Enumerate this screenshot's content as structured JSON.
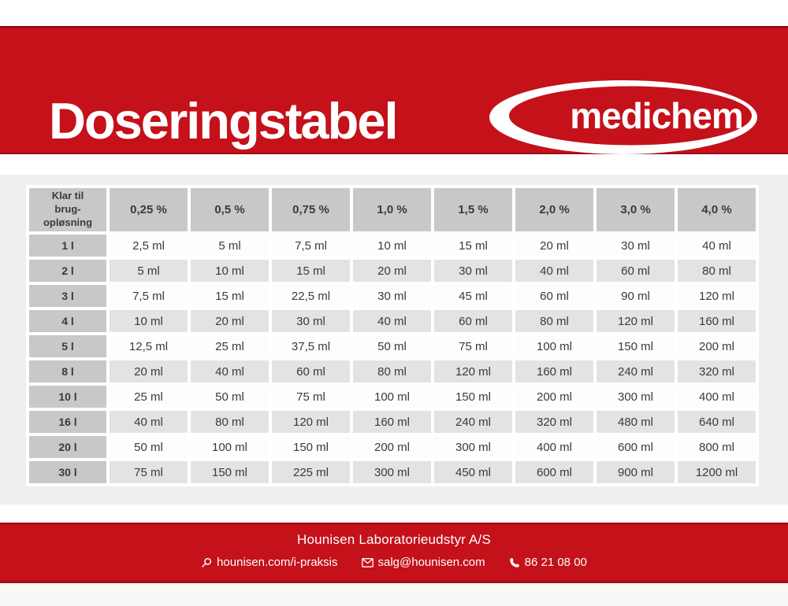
{
  "header": {
    "title": "Doseringstabel",
    "logo_text": "medichem"
  },
  "table": {
    "corner_label": "Klar til\nbrug-\nopløsning",
    "columns": [
      "0,25 %",
      "0,5 %",
      "0,75 %",
      "1,0 %",
      "1,5 %",
      "2,0 %",
      "3,0 %",
      "4,0 %"
    ],
    "rows": [
      {
        "label": "1 l",
        "values": [
          "2,5 ml",
          "5 ml",
          "7,5 ml",
          "10 ml",
          "15 ml",
          "20 ml",
          "30 ml",
          "40 ml"
        ]
      },
      {
        "label": "2 l",
        "values": [
          "5 ml",
          "10 ml",
          "15 ml",
          "20 ml",
          "30 ml",
          "40 ml",
          "60 ml",
          "80 ml"
        ]
      },
      {
        "label": "3 l",
        "values": [
          "7,5 ml",
          "15 ml",
          "22,5 ml",
          "30 ml",
          "45 ml",
          "60 ml",
          "90 ml",
          "120 ml"
        ]
      },
      {
        "label": "4 l",
        "values": [
          "10 ml",
          "20 ml",
          "30 ml",
          "40 ml",
          "60 ml",
          "80 ml",
          "120 ml",
          "160 ml"
        ]
      },
      {
        "label": "5 l",
        "values": [
          "12,5 ml",
          "25 ml",
          "37,5 ml",
          "50 ml",
          "75 ml",
          "100 ml",
          "150 ml",
          "200 ml"
        ]
      },
      {
        "label": "8 l",
        "values": [
          "20 ml",
          "40 ml",
          "60 ml",
          "80 ml",
          "120 ml",
          "160 ml",
          "240 ml",
          "320 ml"
        ]
      },
      {
        "label": "10 l",
        "values": [
          "25 ml",
          "50 ml",
          "75 ml",
          "100 ml",
          "150 ml",
          "200 ml",
          "300 ml",
          "400 ml"
        ]
      },
      {
        "label": "16 l",
        "values": [
          "40 ml",
          "80 ml",
          "120 ml",
          "160 ml",
          "240 ml",
          "320 ml",
          "480 ml",
          "640 ml"
        ]
      },
      {
        "label": "20 l",
        "values": [
          "50 ml",
          "100 ml",
          "150 ml",
          "200 ml",
          "300 ml",
          "400 ml",
          "600 ml",
          "800 ml"
        ]
      },
      {
        "label": "30 l",
        "values": [
          "75 ml",
          "150 ml",
          "225 ml",
          "300 ml",
          "450 ml",
          "600 ml",
          "900 ml",
          "1200 ml"
        ]
      }
    ]
  },
  "footer": {
    "company": "Hounisen Laboratorieudstyr A/S",
    "website": "hounisen.com/i-praksis",
    "email": "salg@hounisen.com",
    "phone": "86 21 08 00"
  },
  "icons": {
    "search": "search-icon",
    "mail": "mail-icon",
    "phone": "phone-icon"
  },
  "colors": {
    "brand_red": "#c4111a",
    "brand_red_edge": "#9d0d12",
    "header_cell_gray": "#c9c8c8",
    "alt_row_gray": "#e4e3e3",
    "row_white": "#fdfdfd",
    "card_gray": "#f0efef",
    "table_text": "#3b3a3a",
    "bottom_strip": "#faf7f7"
  }
}
